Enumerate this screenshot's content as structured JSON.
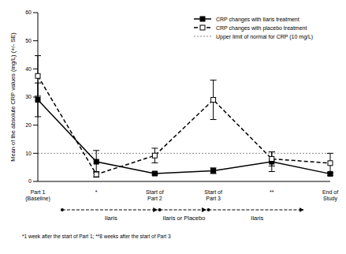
{
  "chart_data": {
    "type": "line",
    "categories": [
      "Part 1 (Baseline)",
      "*",
      "Start of Part 2",
      "Start of Part 3",
      "**",
      "End of Study"
    ],
    "y_label": "Mean of the absolute CRP values (mg/L) (+/- SE)",
    "ylim": [
      0,
      60
    ],
    "yticks": [
      0,
      10,
      20,
      30,
      40,
      50,
      60
    ],
    "grid": false,
    "legend": "upper right",
    "series": [
      {
        "name": "CRP changes with Ilaris treatment",
        "color": "#000000",
        "marker": "filled_square",
        "line_style": "solid",
        "values": [
          29,
          7,
          2.8,
          3.8,
          7,
          2.7
        ],
        "error": [
          6,
          4,
          0.5,
          1,
          3.5,
          0.5
        ]
      },
      {
        "name": "CRP changes with placebo treatment",
        "color": "#000000",
        "marker": "open_square",
        "line_style": "dashed",
        "values": [
          37.5,
          2.5,
          9.2,
          29,
          8,
          6.5
        ],
        "error": [
          7.2,
          1,
          2.6,
          7,
          2.5,
          3.5
        ]
      }
    ],
    "reference_lines": [
      {
        "value": 10,
        "label": "Upper limit of normal for CRP (10 mg/L)",
        "color": "#888888",
        "line_style": "dotted"
      }
    ],
    "phases": [
      {
        "text": "Ilaris",
        "from": "Part 1 (Baseline)",
        "to": "Start of Part 2"
      },
      {
        "text": "Ilaris or Placebo",
        "from": "Start of Part 2",
        "to": "Start of Part 3"
      },
      {
        "text": "Ilaris",
        "from": "Start of Part 3",
        "to": "End of Study"
      }
    ],
    "footnote": "*1 week after the start of Part 1; **8 weeks after the start of Part 3"
  }
}
